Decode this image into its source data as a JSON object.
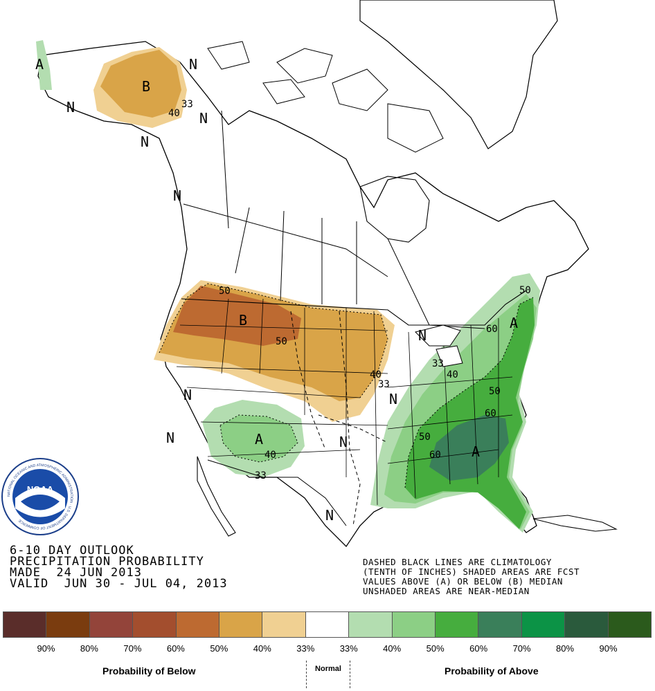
{
  "title": {
    "line1": "6-10 DAY OUTLOOK",
    "line2": "PRECIPITATION PROBABILITY",
    "line3": "MADE  24 JUN 2013",
    "line4": "VALID  JUN 30 - JUL 04, 2013"
  },
  "notes": {
    "line1": "DASHED BLACK LINES ARE CLIMATOLOGY",
    "line2": "(TENTH OF INCHES) SHADED AREAS ARE FCST",
    "line3": "VALUES ABOVE (A) OR BELOW (B) MEDIAN",
    "line4": "UNSHADED AREAS ARE NEAR-MEDIAN"
  },
  "logo": {
    "text": "NOAA",
    "ring_text": "NATIONAL OCEANIC AND ATMOSPHERIC ADMINISTRATION · U.S. DEPARTMENT OF COMMERCE"
  },
  "map_labels": {
    "A": "A",
    "B": "B",
    "N": "N",
    "c33": "33",
    "c40": "40",
    "c50": "50",
    "c60": "60"
  },
  "legend": {
    "below_caption": "Probability of Below",
    "normal_caption": "Normal",
    "above_caption": "Probability of Above",
    "colors": [
      "#5a2d2a",
      "#7a3c0f",
      "#93443a",
      "#a34e2e",
      "#bd6a31",
      "#d9a448",
      "#f0d092",
      "#ffffff",
      "#b3ddb0",
      "#8ccf85",
      "#46ad3e",
      "#3a7f5a",
      "#0c9346",
      "#2a5a3c",
      "#2b5a1c"
    ],
    "percents": [
      "90%",
      "80%",
      "70%",
      "60%",
      "50%",
      "40%",
      "33%",
      "33%",
      "40%",
      "50%",
      "60%",
      "70%",
      "80%",
      "90%"
    ]
  },
  "colors": {
    "below33": "#f0d092",
    "below40": "#d9a448",
    "below50": "#bd6a31",
    "above33": "#b3ddb0",
    "above40": "#8ccf85",
    "above50": "#46ad3e",
    "above60": "#3a7f5a"
  }
}
